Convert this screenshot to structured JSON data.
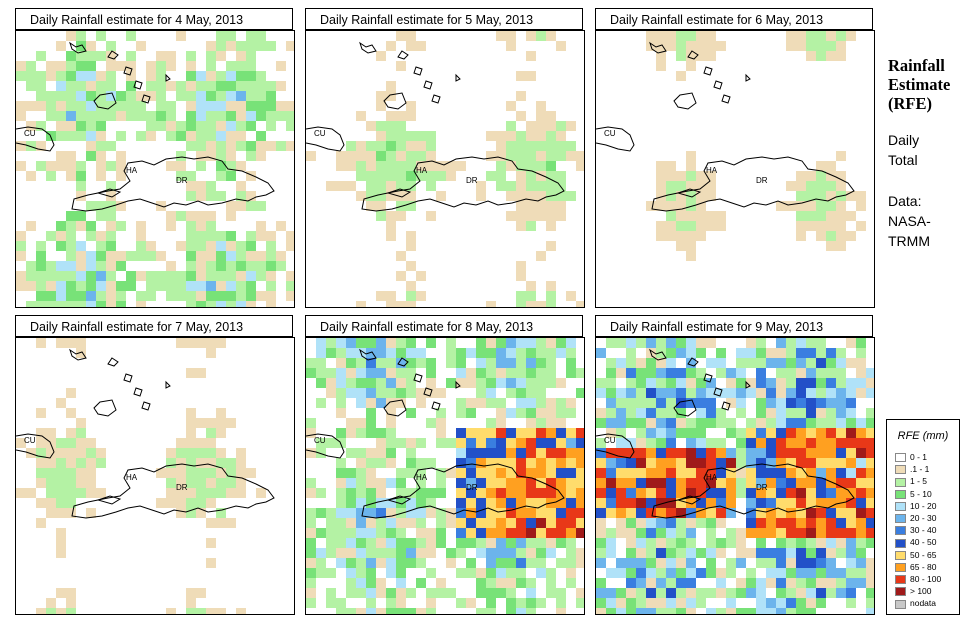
{
  "panels": [
    {
      "title": "Daily Rainfall estimate for  4 May, 2013",
      "intensity": 2.2,
      "hot": [],
      "seed": 11
    },
    {
      "title": "Daily Rainfall estimate for  5 May, 2013",
      "intensity": 1.2,
      "hot": [],
      "seed": 23
    },
    {
      "title": "Daily Rainfall estimate for  6 May, 2013",
      "intensity": 0.6,
      "hot": [],
      "seed": 37
    },
    {
      "title": "Daily Rainfall estimate for  7 May, 2013",
      "intensity": 1.0,
      "hot": [],
      "seed": 41
    },
    {
      "title": "Daily Rainfall estimate for  8 May, 2013",
      "intensity": 2.8,
      "hot": [
        "east"
      ],
      "seed": 53
    },
    {
      "title": "Daily Rainfall estimate for  9 May, 2013",
      "intensity": 3.6,
      "hot": [
        "east",
        "west"
      ],
      "seed": 67
    }
  ],
  "map_labels": {
    "cuba": "CU",
    "haiti": "HA",
    "dr": "DR"
  },
  "side": {
    "title_line1": "Rainfall",
    "title_line2": "Estimate",
    "title_line3": "(RFE)",
    "daily_line1": "Daily",
    "daily_line2": "Total",
    "data_line1": "Data:",
    "data_line2": "NASA-",
    "data_line3": "TRMM"
  },
  "legend": {
    "title": "RFE (mm)",
    "items": [
      {
        "label": "0 - 1",
        "color": "#ffffff"
      },
      {
        "label": ".1 - 1",
        "color": "#efdcb8"
      },
      {
        "label": "1 - 5",
        "color": "#b4f2a4"
      },
      {
        "label": "5 - 10",
        "color": "#78e278"
      },
      {
        "label": "10 - 20",
        "color": "#b0e2f8"
      },
      {
        "label": "20 - 30",
        "color": "#6cb4ec"
      },
      {
        "label": "30 - 40",
        "color": "#3a7ee0"
      },
      {
        "label": "40 - 50",
        "color": "#2250c8"
      },
      {
        "label": "50 - 65",
        "color": "#ffdc6c"
      },
      {
        "label": "65 - 80",
        "color": "#ffa020"
      },
      {
        "label": "80 - 100",
        "color": "#e83818"
      },
      {
        "label": "> 100",
        "color": "#a01a1a"
      },
      {
        "label": "nodata",
        "color": "#c8c8c8"
      }
    ]
  }
}
